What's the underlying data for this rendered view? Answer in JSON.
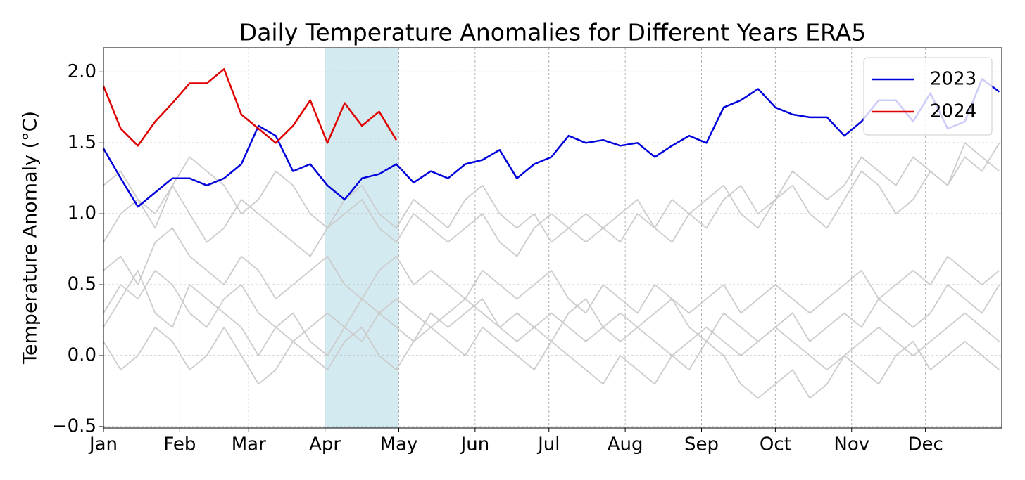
{
  "chart_data": {
    "type": "line",
    "title": "Daily Temperature Anomalies for Different Years ERA5",
    "ylabel": "Temperature Anomaly (°C)",
    "x": [
      0,
      7,
      14,
      21,
      28,
      35,
      42,
      49,
      56,
      63,
      70,
      77,
      84,
      91,
      98,
      105,
      112,
      119,
      126,
      133,
      140,
      147,
      154,
      161,
      168,
      175,
      182,
      189,
      196,
      203,
      210,
      217,
      224,
      231,
      238,
      245,
      252,
      259,
      266,
      273,
      280,
      287,
      294,
      301,
      308,
      315,
      322,
      329,
      336,
      343,
      350,
      357,
      364
    ],
    "xlim": [
      0,
      365
    ],
    "xticks": [
      {
        "value": 0,
        "label": "Jan"
      },
      {
        "value": 31,
        "label": "Feb"
      },
      {
        "value": 59,
        "label": "Mar"
      },
      {
        "value": 90,
        "label": "Apr"
      },
      {
        "value": 120,
        "label": "May"
      },
      {
        "value": 151,
        "label": "Jun"
      },
      {
        "value": 181,
        "label": "Jul"
      },
      {
        "value": 212,
        "label": "Aug"
      },
      {
        "value": 243,
        "label": "Sep"
      },
      {
        "value": 273,
        "label": "Oct"
      },
      {
        "value": 304,
        "label": "Nov"
      },
      {
        "value": 334,
        "label": "Dec"
      }
    ],
    "ylim": [
      -0.51,
      2.17
    ],
    "yticks": [
      {
        "value": -0.5,
        "label": "−0.5"
      },
      {
        "value": 0,
        "label": "0.0"
      },
      {
        "value": 0.5,
        "label": "0.5"
      },
      {
        "value": 1,
        "label": "1.0"
      },
      {
        "value": 1.5,
        "label": "1.5"
      },
      {
        "value": 2,
        "label": "2.0"
      }
    ],
    "grid": true,
    "legend": "upper right",
    "span": [
      90,
      120
    ],
    "span_color": "#d3eaf0",
    "series": [
      {
        "color": "#cccccc",
        "values": [
          0.3,
          0.5,
          0.4,
          0.6,
          0.5,
          0.3,
          0.2,
          0.4,
          0.5,
          0.3,
          0.2,
          0.1,
          0.2,
          0.3,
          0.2,
          0.1,
          0.3,
          0.4,
          0.3,
          0.2,
          0.3,
          0.4,
          0.3,
          0.2,
          0.1,
          0.2,
          0.3,
          0.2,
          0.1,
          0.2,
          0.3,
          0.2,
          0.1,
          0.0,
          0.1,
          0.2,
          0.1,
          0.0,
          0.1,
          0.2,
          0.1,
          0.0,
          -0.1,
          0.0,
          0.1,
          0.2,
          0.1,
          0.0,
          0.1,
          0.2,
          0.3,
          0.2,
          0.1
        ]
      },
      {
        "color": "#cccccc",
        "values": [
          0.8,
          1.0,
          1.1,
          0.9,
          1.2,
          1.0,
          0.8,
          0.9,
          1.1,
          1.0,
          0.9,
          0.8,
          0.7,
          0.9,
          1.0,
          1.1,
          0.9,
          0.8,
          1.0,
          0.9,
          0.8,
          0.9,
          1.0,
          0.8,
          0.7,
          0.9,
          1.0,
          0.9,
          0.8,
          0.9,
          1.0,
          1.1,
          0.9,
          0.8,
          1.0,
          1.1,
          1.2,
          1.0,
          0.9,
          1.1,
          1.2,
          1.0,
          0.9,
          1.1,
          1.3,
          1.2,
          1.0,
          1.1,
          1.3,
          1.2,
          1.4,
          1.3,
          1.5
        ]
      },
      {
        "color": "#cccccc",
        "values": [
          0.1,
          -0.1,
          0.0,
          0.2,
          0.1,
          -0.1,
          0.0,
          0.2,
          0.0,
          -0.2,
          -0.1,
          0.1,
          0.0,
          -0.1,
          0.1,
          0.2,
          0.0,
          -0.1,
          0.1,
          0.2,
          0.1,
          0.0,
          0.2,
          0.1,
          0.0,
          -0.1,
          0.1,
          0.0,
          -0.1,
          -0.2,
          0.0,
          -0.1,
          -0.2,
          0.0,
          -0.1,
          0.1,
          0.0,
          -0.2,
          -0.3,
          -0.2,
          -0.1,
          -0.3,
          -0.2,
          0.0,
          -0.1,
          -0.2,
          0.0,
          0.1,
          -0.1,
          0.0,
          0.1,
          0.0,
          -0.1
        ]
      },
      {
        "color": "#cccccc",
        "values": [
          0.6,
          0.7,
          0.5,
          0.8,
          0.9,
          0.7,
          0.6,
          0.5,
          0.7,
          0.6,
          0.4,
          0.5,
          0.6,
          0.7,
          0.5,
          0.4,
          0.6,
          0.7,
          0.5,
          0.6,
          0.5,
          0.4,
          0.6,
          0.5,
          0.4,
          0.5,
          0.6,
          0.4,
          0.3,
          0.5,
          0.4,
          0.3,
          0.5,
          0.4,
          0.3,
          0.4,
          0.5,
          0.3,
          0.4,
          0.5,
          0.4,
          0.3,
          0.4,
          0.5,
          0.6,
          0.4,
          0.5,
          0.6,
          0.5,
          0.7,
          0.6,
          0.5,
          0.6
        ]
      },
      {
        "color": "#cccccc",
        "values": [
          1.2,
          1.3,
          1.1,
          1.0,
          1.2,
          1.4,
          1.3,
          1.2,
          1.0,
          1.1,
          1.3,
          1.2,
          1.0,
          0.9,
          1.1,
          1.2,
          1.0,
          0.9,
          1.1,
          1.0,
          0.9,
          1.1,
          1.2,
          1.0,
          0.9,
          1.0,
          0.8,
          0.9,
          1.0,
          0.9,
          0.8,
          1.0,
          0.9,
          1.1,
          1.0,
          0.9,
          1.1,
          1.2,
          1.0,
          1.1,
          1.3,
          1.2,
          1.1,
          1.2,
          1.4,
          1.3,
          1.2,
          1.4,
          1.3,
          1.2,
          1.5,
          1.4,
          1.3
        ]
      },
      {
        "color": "#cccccc",
        "values": [
          0.2,
          0.4,
          0.6,
          0.3,
          0.2,
          0.5,
          0.4,
          0.3,
          0.2,
          0.0,
          0.2,
          0.3,
          0.1,
          0.0,
          0.2,
          0.4,
          0.3,
          0.2,
          0.1,
          0.3,
          0.2,
          0.3,
          0.4,
          0.2,
          0.3,
          0.2,
          0.1,
          0.3,
          0.4,
          0.2,
          0.1,
          0.2,
          0.3,
          0.4,
          0.2,
          0.1,
          0.3,
          0.2,
          0.1,
          0.2,
          0.3,
          0.1,
          0.2,
          0.3,
          0.2,
          0.4,
          0.3,
          0.2,
          0.3,
          0.5,
          0.4,
          0.3,
          0.5
        ]
      },
      {
        "name": "2023",
        "color": "#0000dd",
        "values": [
          1.46,
          1.25,
          1.05,
          1.15,
          1.25,
          1.25,
          1.2,
          1.25,
          1.35,
          1.62,
          1.55,
          1.3,
          1.35,
          1.2,
          1.1,
          1.25,
          1.28,
          1.35,
          1.22,
          1.3,
          1.25,
          1.35,
          1.38,
          1.45,
          1.25,
          1.35,
          1.4,
          1.55,
          1.5,
          1.52,
          1.48,
          1.5,
          1.4,
          1.48,
          1.55,
          1.5,
          1.75,
          1.8,
          1.88,
          1.75,
          1.7,
          1.68,
          1.68,
          1.55,
          1.65,
          1.8,
          1.8,
          1.65,
          1.85,
          1.6,
          1.65,
          1.95,
          1.86
        ]
      },
      {
        "name": "2024",
        "color": "#e00000",
        "values": [
          1.9,
          1.6,
          1.48,
          1.65,
          1.78,
          1.92,
          1.92,
          2.02,
          1.7,
          1.6,
          1.5,
          1.62,
          1.8,
          1.5,
          1.78,
          1.62,
          1.72,
          1.52,
          null,
          null,
          null,
          null,
          null,
          null,
          null,
          null,
          null,
          null,
          null,
          null,
          null,
          null,
          null,
          null,
          null,
          null,
          null,
          null,
          null,
          null,
          null,
          null,
          null,
          null,
          null,
          null,
          null,
          null,
          null,
          null,
          null,
          null,
          null
        ]
      }
    ]
  }
}
